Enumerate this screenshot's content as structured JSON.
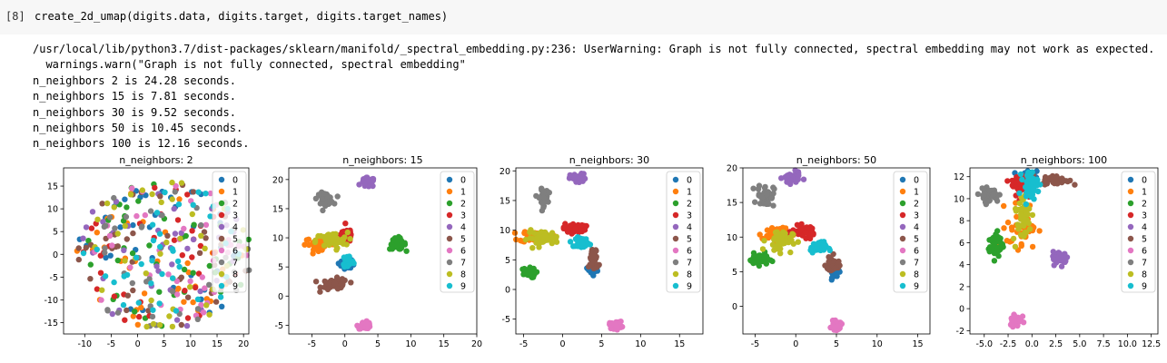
{
  "cell": {
    "prompt": "[8]",
    "code": "create_2d_umap(digits.data, digits.target, digits.target_names)"
  },
  "output": {
    "warning_line1": "/usr/local/lib/python3.7/dist-packages/sklearn/manifold/_spectral_embedding.py:236: UserWarning: Graph is not fully connected, spectral embedding may not work as expected.",
    "warning_line2": "  warnings.warn(\"Graph is not fully connected, spectral embedding\"",
    "timings": [
      "n_neighbors 2 is 24.28 seconds.",
      "n_neighbors 15 is 7.81 seconds.",
      "n_neighbors 30 is 9.52 seconds.",
      "n_neighbors 50 is 10.45 seconds.",
      "n_neighbors 100 is 12.16 seconds."
    ]
  },
  "legend_labels": [
    "0",
    "1",
    "2",
    "3",
    "4",
    "5",
    "6",
    "7",
    "8",
    "9"
  ],
  "colors": [
    "#1f77b4",
    "#ff7f0e",
    "#2ca02c",
    "#d62728",
    "#9467bd",
    "#8c564b",
    "#e377c2",
    "#7f7f7f",
    "#bcbd22",
    "#17becf"
  ],
  "chart_data": [
    {
      "type": "scatter",
      "title": "n_neighbors: 2",
      "xlim": [
        -14,
        21
      ],
      "ylim": [
        -17.5,
        19
      ],
      "xticks": [
        -10,
        -5,
        0,
        5,
        10,
        15,
        20
      ],
      "yticks": [
        -15,
        -10,
        -5,
        0,
        5,
        10,
        15
      ],
      "legend": "top-right",
      "clusters": [
        {
          "label": "0",
          "x": 5,
          "y": 0,
          "sx": 7,
          "sy": 7,
          "spread": "uniform"
        },
        {
          "label": "1",
          "x": 5,
          "y": 0,
          "sx": 7,
          "sy": 7,
          "spread": "uniform"
        },
        {
          "label": "2",
          "x": 5,
          "y": 0,
          "sx": 7,
          "sy": 7,
          "spread": "uniform"
        },
        {
          "label": "3",
          "x": 5,
          "y": 0,
          "sx": 7,
          "sy": 7,
          "spread": "uniform"
        },
        {
          "label": "4",
          "x": 5,
          "y": 0,
          "sx": 7,
          "sy": 7,
          "spread": "uniform"
        },
        {
          "label": "5",
          "x": 5,
          "y": 0,
          "sx": 7,
          "sy": 7,
          "spread": "uniform"
        },
        {
          "label": "6",
          "x": 5,
          "y": 0,
          "sx": 7,
          "sy": 7,
          "spread": "uniform"
        },
        {
          "label": "7",
          "x": 5,
          "y": 0,
          "sx": 7,
          "sy": 7,
          "spread": "uniform"
        },
        {
          "label": "8",
          "x": 5,
          "y": 0,
          "sx": 7,
          "sy": 7,
          "spread": "uniform"
        },
        {
          "label": "9",
          "x": 5,
          "y": 0,
          "sx": 7,
          "sy": 7,
          "spread": "uniform"
        }
      ]
    },
    {
      "type": "scatter",
      "title": "n_neighbors: 15",
      "xlim": [
        -8.5,
        20
      ],
      "ylim": [
        -6.5,
        22
      ],
      "xticks": [
        -5,
        0,
        5,
        10,
        15,
        20
      ],
      "yticks": [
        -5,
        0,
        5,
        10,
        15,
        20
      ],
      "legend": "top-right",
      "clusters": [
        {
          "label": "0",
          "x": 0.2,
          "y": 5.5,
          "sx": 0.4,
          "sy": 0.4
        },
        {
          "label": "1",
          "x": -3.5,
          "y": 9.0,
          "sx": 1.3,
          "sy": 0.5
        },
        {
          "label": "2",
          "x": 8.0,
          "y": 9.0,
          "sx": 0.6,
          "sy": 0.5
        },
        {
          "label": "3",
          "x": 0.3,
          "y": 10.5,
          "sx": 0.5,
          "sy": 0.6
        },
        {
          "label": "4",
          "x": 3.5,
          "y": 19.5,
          "sx": 0.5,
          "sy": 0.4
        },
        {
          "label": "5",
          "x": -1.5,
          "y": 2.0,
          "sx": 1.0,
          "sy": 0.5
        },
        {
          "label": "6",
          "x": 3.0,
          "y": -5.0,
          "sx": 0.5,
          "sy": 0.3
        },
        {
          "label": "7",
          "x": -3.0,
          "y": 16.7,
          "sx": 0.6,
          "sy": 0.5
        },
        {
          "label": "8",
          "x": -2.0,
          "y": 9.5,
          "sx": 1.2,
          "sy": 0.7
        },
        {
          "label": "9",
          "x": 0.5,
          "y": 6.0,
          "sx": 0.4,
          "sy": 0.6
        }
      ]
    },
    {
      "type": "scatter",
      "title": "n_neighbors: 30",
      "xlim": [
        -6,
        18
      ],
      "ylim": [
        -7.5,
        20.5
      ],
      "xticks": [
        -5,
        0,
        5,
        10,
        15
      ],
      "yticks": [
        -5,
        0,
        5,
        10,
        15,
        20
      ],
      "legend": "top-right",
      "clusters": [
        {
          "label": "0",
          "x": 4.0,
          "y": 3.5,
          "sx": 0.3,
          "sy": 0.4
        },
        {
          "label": "1",
          "x": -3.5,
          "y": 9.0,
          "sx": 1.0,
          "sy": 0.5
        },
        {
          "label": "2",
          "x": -4.5,
          "y": 2.8,
          "sx": 0.5,
          "sy": 0.4
        },
        {
          "label": "3",
          "x": 1.5,
          "y": 10.3,
          "sx": 0.7,
          "sy": 0.4
        },
        {
          "label": "4",
          "x": 2.0,
          "y": 18.7,
          "sx": 0.5,
          "sy": 0.4
        },
        {
          "label": "5",
          "x": 4.0,
          "y": 5.0,
          "sx": 0.3,
          "sy": 0.9
        },
        {
          "label": "6",
          "x": 6.8,
          "y": -6.0,
          "sx": 0.4,
          "sy": 0.3
        },
        {
          "label": "7",
          "x": -2.5,
          "y": 15.5,
          "sx": 0.3,
          "sy": 0.7
        },
        {
          "label": "8",
          "x": -2.5,
          "y": 8.7,
          "sx": 1.0,
          "sy": 0.6
        },
        {
          "label": "9",
          "x": 2.5,
          "y": 8.0,
          "sx": 0.4,
          "sy": 0.4
        }
      ]
    },
    {
      "type": "scatter",
      "title": "n_neighbors: 50",
      "xlim": [
        -6.5,
        16.5
      ],
      "ylim": [
        -4,
        20
      ],
      "xticks": [
        -5,
        0,
        5,
        10,
        15
      ],
      "yticks": [
        0,
        5,
        10,
        15,
        20
      ],
      "legend": "top-right",
      "clusters": [
        {
          "label": "0",
          "x": 4.8,
          "y": 5.0,
          "sx": 0.3,
          "sy": 0.4
        },
        {
          "label": "1",
          "x": -2.5,
          "y": 10.5,
          "sx": 0.8,
          "sy": 0.6
        },
        {
          "label": "2",
          "x": -4.5,
          "y": 6.8,
          "sx": 0.6,
          "sy": 0.4
        },
        {
          "label": "3",
          "x": 1.0,
          "y": 10.8,
          "sx": 0.7,
          "sy": 0.4
        },
        {
          "label": "4",
          "x": -0.5,
          "y": 18.5,
          "sx": 0.5,
          "sy": 0.4
        },
        {
          "label": "5",
          "x": 4.5,
          "y": 6.0,
          "sx": 0.4,
          "sy": 0.6
        },
        {
          "label": "6",
          "x": 5.0,
          "y": -2.8,
          "sx": 0.3,
          "sy": 0.3
        },
        {
          "label": "7",
          "x": -3.7,
          "y": 16.0,
          "sx": 0.5,
          "sy": 0.8
        },
        {
          "label": "8",
          "x": -2.0,
          "y": 9.5,
          "sx": 0.8,
          "sy": 0.8
        },
        {
          "label": "9",
          "x": 2.8,
          "y": 8.5,
          "sx": 0.5,
          "sy": 0.4
        }
      ]
    },
    {
      "type": "scatter",
      "title": "n_neighbors: 100",
      "xlim": [
        -6.5,
        13.2
      ],
      "ylim": [
        -2.3,
        12.8
      ],
      "xticks": [
        -5.0,
        -2.5,
        0.0,
        2.5,
        5.0,
        7.5,
        10.0,
        12.5
      ],
      "yticks": [
        -2,
        0,
        2,
        4,
        6,
        8,
        10,
        12
      ],
      "legend": "top-right",
      "clusters": [
        {
          "label": "0",
          "x": -0.5,
          "y": 11.7,
          "sx": 0.5,
          "sy": 0.4
        },
        {
          "label": "1",
          "x": -1.0,
          "y": 7.5,
          "sx": 0.8,
          "sy": 1.0
        },
        {
          "label": "2",
          "x": -3.8,
          "y": 5.8,
          "sx": 0.4,
          "sy": 0.6
        },
        {
          "label": "3",
          "x": -1.0,
          "y": 11.3,
          "sx": 0.6,
          "sy": 0.6
        },
        {
          "label": "4",
          "x": 3.0,
          "y": 4.6,
          "sx": 0.4,
          "sy": 0.3
        },
        {
          "label": "5",
          "x": 2.5,
          "y": 11.7,
          "sx": 0.7,
          "sy": 0.2
        },
        {
          "label": "6",
          "x": -1.7,
          "y": -1.0,
          "sx": 0.3,
          "sy": 0.3
        },
        {
          "label": "7",
          "x": -4.5,
          "y": 10.3,
          "sx": 0.5,
          "sy": 0.3
        },
        {
          "label": "8",
          "x": -1.0,
          "y": 8.5,
          "sx": 0.5,
          "sy": 1.2
        },
        {
          "label": "9",
          "x": -0.2,
          "y": 11.3,
          "sx": 0.4,
          "sy": 0.6
        }
      ]
    }
  ]
}
